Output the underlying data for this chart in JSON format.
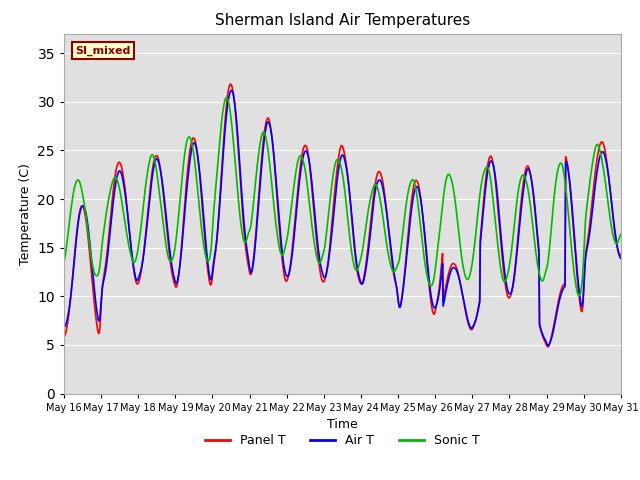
{
  "title": "Sherman Island Air Temperatures",
  "xlabel": "Time",
  "ylabel": "Temperature (C)",
  "ylim": [
    0,
    37
  ],
  "yticks": [
    0,
    5,
    10,
    15,
    20,
    25,
    30,
    35
  ],
  "annotation_text": "SI_mixed",
  "annotation_color": "#8B0000",
  "annotation_bg": "#FFFFCC",
  "bg_color": "#E0E0E0",
  "panel_color": "#FF0000",
  "air_color": "#0000FF",
  "sonic_color": "#00BB00",
  "line_width": 1.2,
  "legend_labels": [
    "Panel T",
    "Air T",
    "Sonic T"
  ],
  "x_tick_labels": [
    "May 16",
    "May 17",
    "May 18",
    "May 19",
    "May 20",
    "May 21",
    "May 22",
    "May 23",
    "May 24",
    "May 25",
    "May 26",
    "May 27",
    "May 28",
    "May 29",
    "May 30",
    "May 31"
  ],
  "n_points": 960,
  "days": 15,
  "base_mean": 18.0,
  "daily_amp_panel": [
    7.0,
    6.5,
    6.5,
    8.0,
    9.5,
    8.5,
    7.0,
    7.0,
    6.0,
    7.0,
    7.0,
    7.5,
    7.0,
    8.5,
    6.0
  ],
  "daily_mean_panel": [
    12.5,
    17.5,
    18.0,
    18.5,
    22.5,
    20.0,
    18.5,
    18.5,
    17.0,
    15.0,
    16.0,
    17.0,
    16.5,
    16.0,
    20.0
  ],
  "daily_amp_air": [
    6.5,
    6.0,
    6.0,
    7.5,
    9.0,
    8.0,
    6.5,
    6.5,
    5.5,
    6.5,
    6.5,
    7.0,
    6.5,
    8.0,
    5.5
  ],
  "daily_mean_air": [
    13.0,
    17.0,
    18.0,
    18.5,
    22.5,
    20.0,
    18.5,
    18.0,
    16.5,
    15.0,
    15.5,
    17.0,
    16.5,
    16.0,
    19.5
  ],
  "daily_amp_sonic": [
    5.0,
    4.5,
    5.5,
    6.5,
    7.5,
    6.5,
    5.5,
    6.0,
    4.5,
    5.5,
    5.5,
    6.0,
    5.5,
    7.0,
    5.0
  ],
  "daily_mean_sonic": [
    17.0,
    18.0,
    19.0,
    20.0,
    23.0,
    20.5,
    19.0,
    18.5,
    17.0,
    16.5,
    17.0,
    17.5,
    17.0,
    17.0,
    20.5
  ],
  "phase_panel": 1.5,
  "phase_air": 1.6,
  "phase_sonic": 0.8
}
